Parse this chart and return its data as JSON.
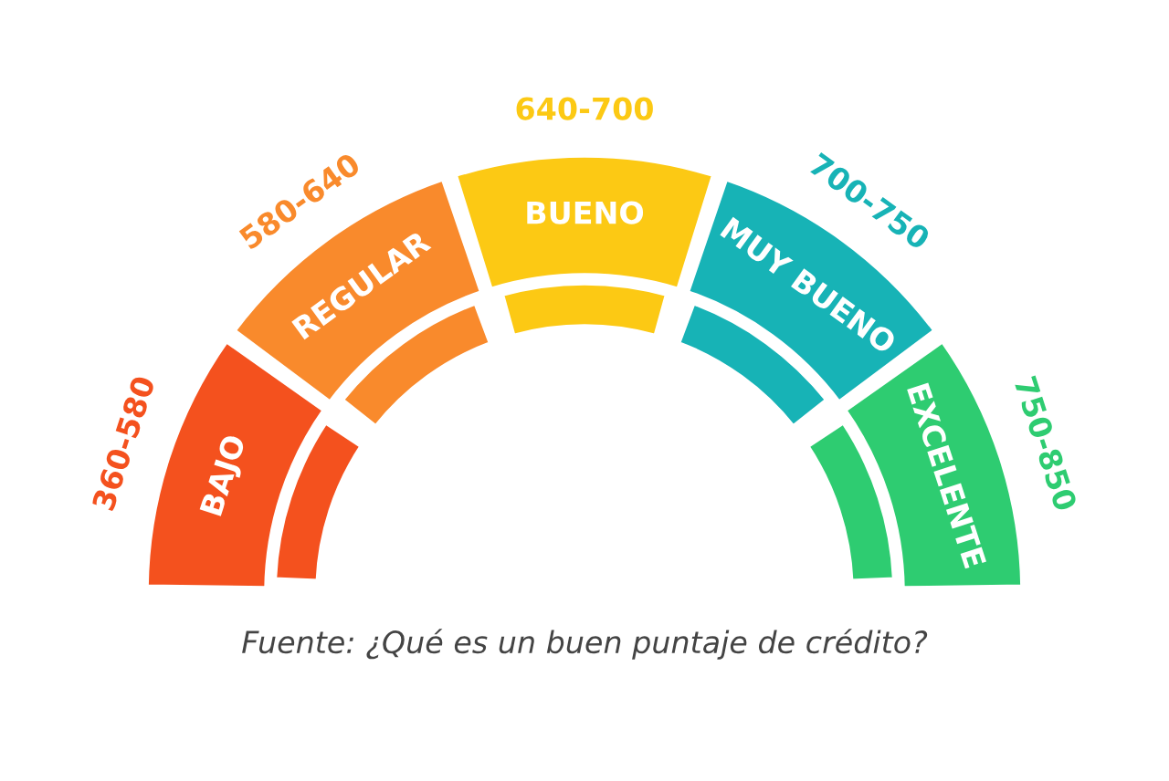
{
  "chart_data": {
    "type": "donut",
    "categories": [
      "BAJO",
      "REGULAR",
      "BUENO",
      "MUY BUENO",
      "EXCELENTE"
    ],
    "series": [
      {
        "values": [
          20,
          20,
          20,
          20,
          20
        ],
        "value_labels": [
          "360-580",
          "580-640",
          "640-700",
          "700-750",
          "750-850"
        ]
      },
      {
        "values": [
          20,
          20,
          20,
          20,
          20
        ]
      }
    ],
    "colors": [
      "#f4511e",
      "#f98a2c",
      "#fcc914",
      "#17b3b6",
      "#2ecc71"
    ],
    "annotations": [
      "Fuente: ¿Qué es un buen puntaje de crédito?"
    ]
  }
}
